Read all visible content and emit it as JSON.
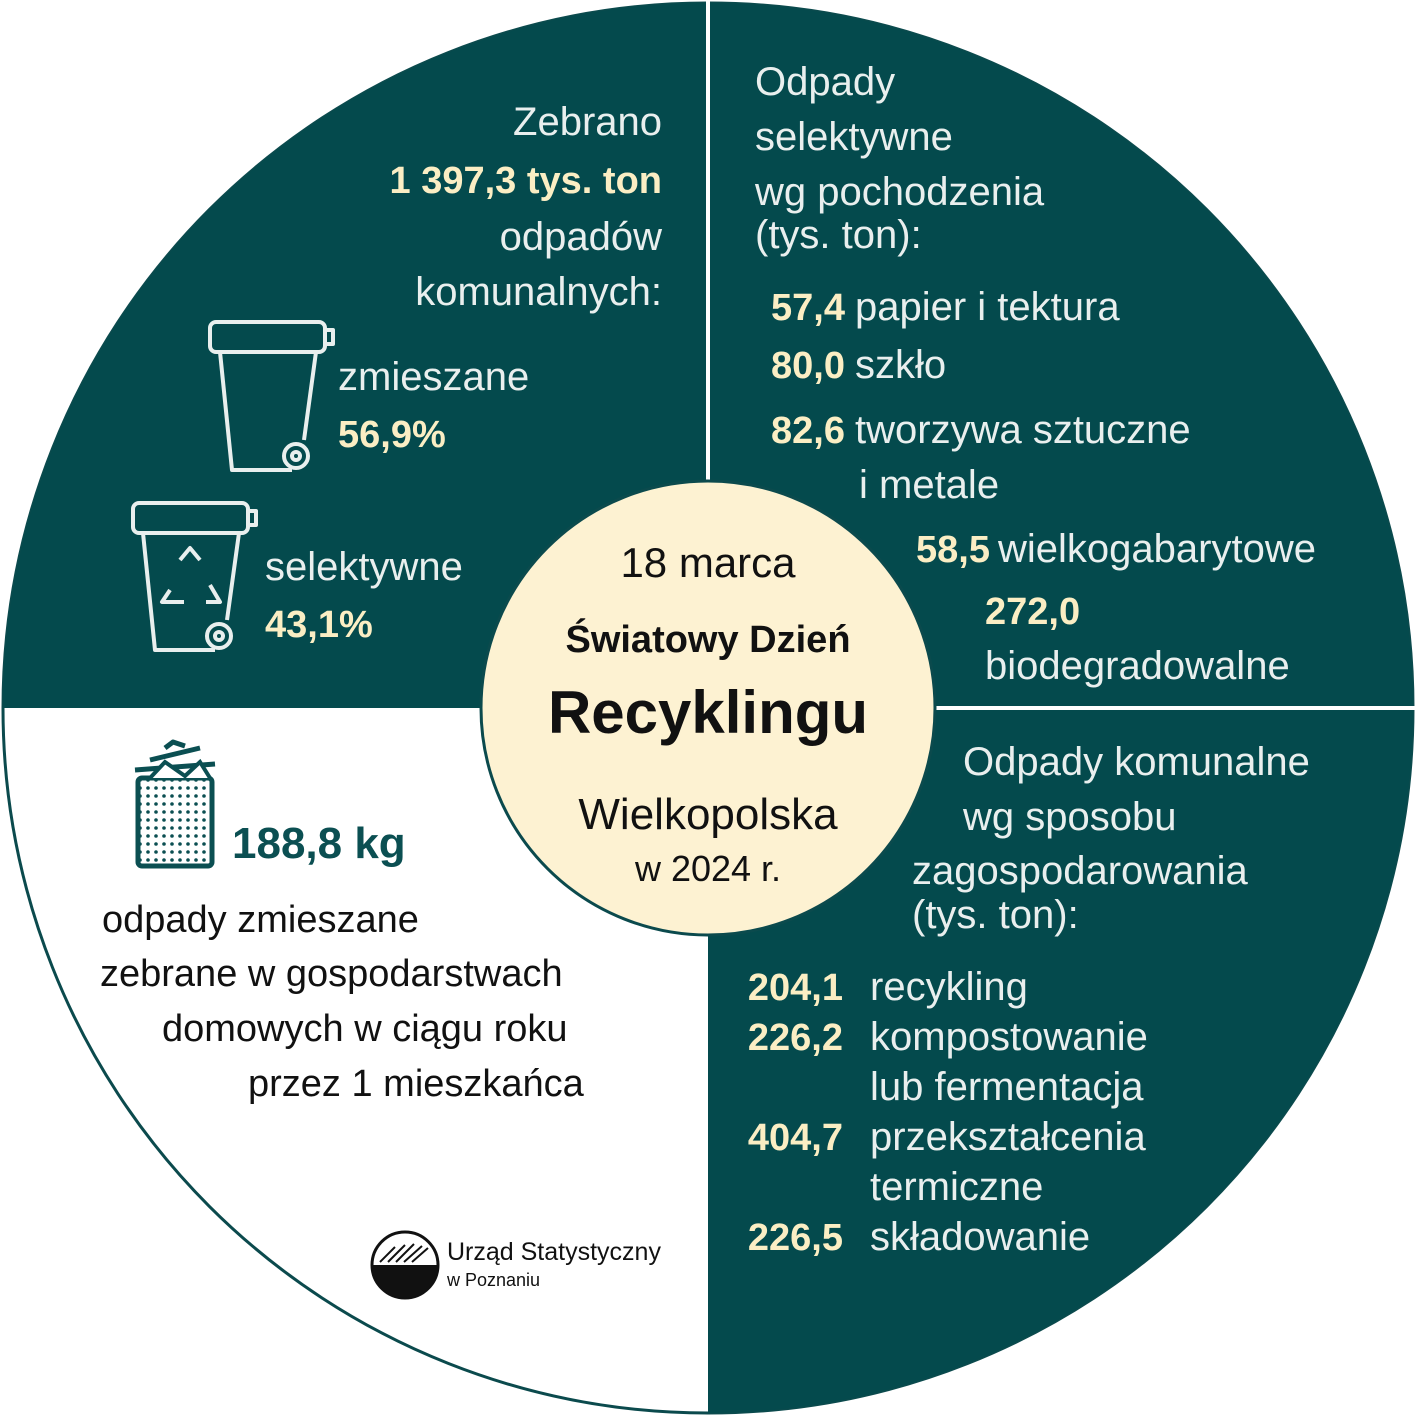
{
  "center": {
    "date": "18 marca",
    "title_line1": "Światowy Dzień",
    "title_line2": "Recyklingu",
    "region": "Wielkopolska",
    "year": "w 2024 r."
  },
  "collected": {
    "intro": "Zebrano",
    "amount": "1 397,3 tys. ton",
    "outro_lines": [
      "odpadów",
      "komunalnych:"
    ],
    "types": [
      {
        "label": "zmieszane",
        "share": "56,9%"
      },
      {
        "label": "selektywne",
        "share": "43,1%"
      }
    ]
  },
  "selective": {
    "title_lines": [
      "Odpady",
      "selektywne",
      "wg pochodzenia"
    ],
    "unit": "(tys. ton):",
    "items": [
      {
        "value": "57,4",
        "label_lines": [
          "papier i tektura"
        ]
      },
      {
        "value": "80,0",
        "label_lines": [
          "szkło"
        ]
      },
      {
        "value": "82,6",
        "label_lines": [
          "tworzywa sztuczne",
          "i metale"
        ]
      },
      {
        "value": "58,5",
        "label_lines": [
          "wielkogabarytowe"
        ]
      },
      {
        "value": "272,0",
        "label_lines": [
          "biodegradowalne"
        ]
      }
    ]
  },
  "management": {
    "title_lines": [
      "Odpady komunalne",
      "wg sposobu",
      "zagospodarowania"
    ],
    "unit": "(tys. ton):",
    "items": [
      {
        "value": "204,1",
        "label_lines": [
          "recykling"
        ]
      },
      {
        "value": "226,2",
        "label_lines": [
          "kompostowanie",
          "lub fermentacja"
        ]
      },
      {
        "value": "404,7",
        "label_lines": [
          "przekształcenia",
          "termiczne"
        ]
      },
      {
        "value": "226,5",
        "label_lines": [
          "składowanie"
        ]
      }
    ]
  },
  "per_capita": {
    "value": "188,8 kg",
    "description_lines": [
      "odpady zmieszane",
      "zebrane w gospodarstwach",
      "domowych w ciągu roku",
      "przez 1 mieszkańca"
    ]
  },
  "footer": {
    "org_lines": [
      "Urząd Statystyczny",
      "w Poznaniu"
    ]
  }
}
